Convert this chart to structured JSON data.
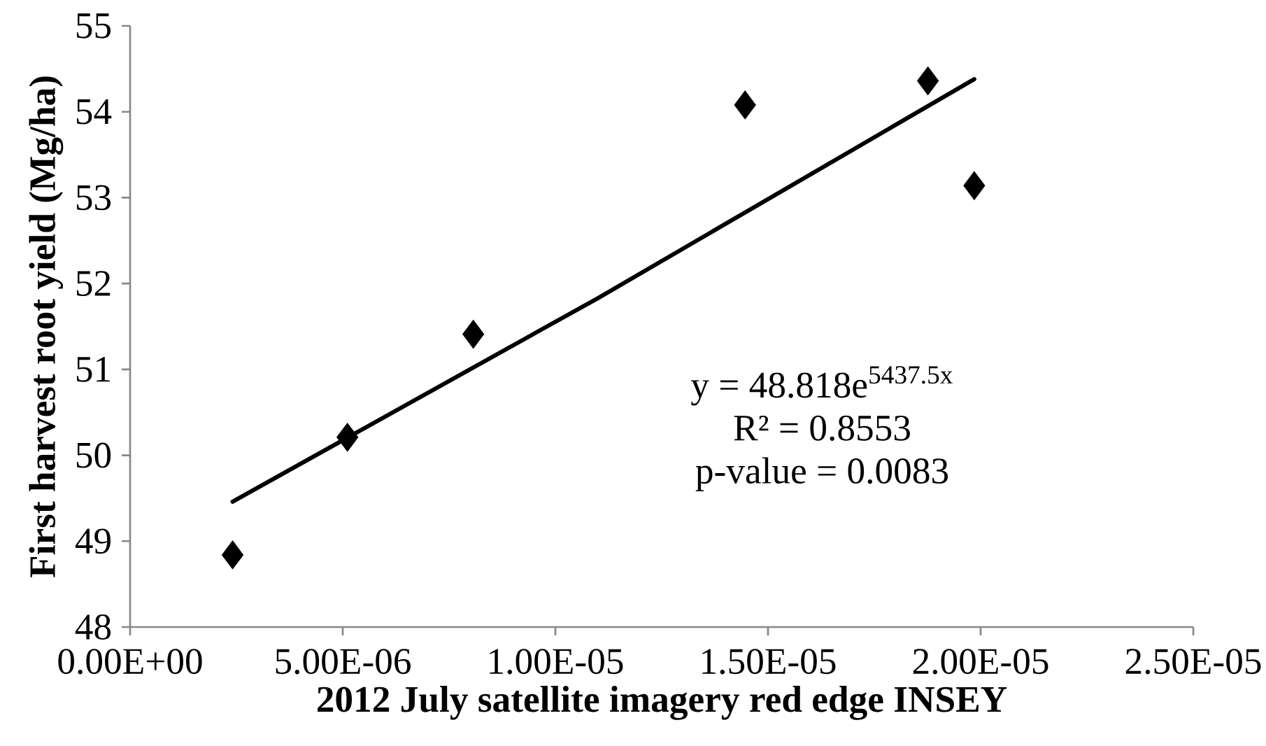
{
  "chart_data": {
    "type": "scatter",
    "xlabel": "2012 July satellite imagery red edge INSEY",
    "ylabel": "First harvest root yield (Mg/ha)",
    "xlim": [
      0,
      2.5e-05
    ],
    "ylim": [
      48,
      55
    ],
    "xticks": [
      {
        "value": 0,
        "label": "0.00E+00"
      },
      {
        "value": 5e-06,
        "label": "5.00E-06"
      },
      {
        "value": 1e-05,
        "label": "1.00E-05"
      },
      {
        "value": 1.5e-05,
        "label": "1.50E-05"
      },
      {
        "value": 2e-05,
        "label": "2.00E-05"
      },
      {
        "value": 2.5e-05,
        "label": "2.50E-05"
      }
    ],
    "yticks": [
      48,
      49,
      50,
      51,
      52,
      53,
      54,
      55
    ],
    "grid": false,
    "marker": "diamond",
    "series": [
      {
        "color": "#000000",
        "x": [
          2.41e-06,
          5.11e-06,
          8.07e-06,
          1.446e-05,
          1.876e-05,
          1.985e-05
        ],
        "values": [
          48.84,
          50.21,
          51.41,
          54.08,
          54.36,
          53.14
        ]
      },
      {
        "type": "line",
        "color": "#000000",
        "marker": "none",
        "x": [
          2.41e-06,
          1.1e-05,
          1.985e-05
        ],
        "values": [
          49.46,
          51.83,
          54.38
        ]
      }
    ],
    "annotations": [
      "y = 48.818e$^{5437.5x}$",
      "R² = 0.8553",
      "p-value = 0.0083"
    ]
  }
}
